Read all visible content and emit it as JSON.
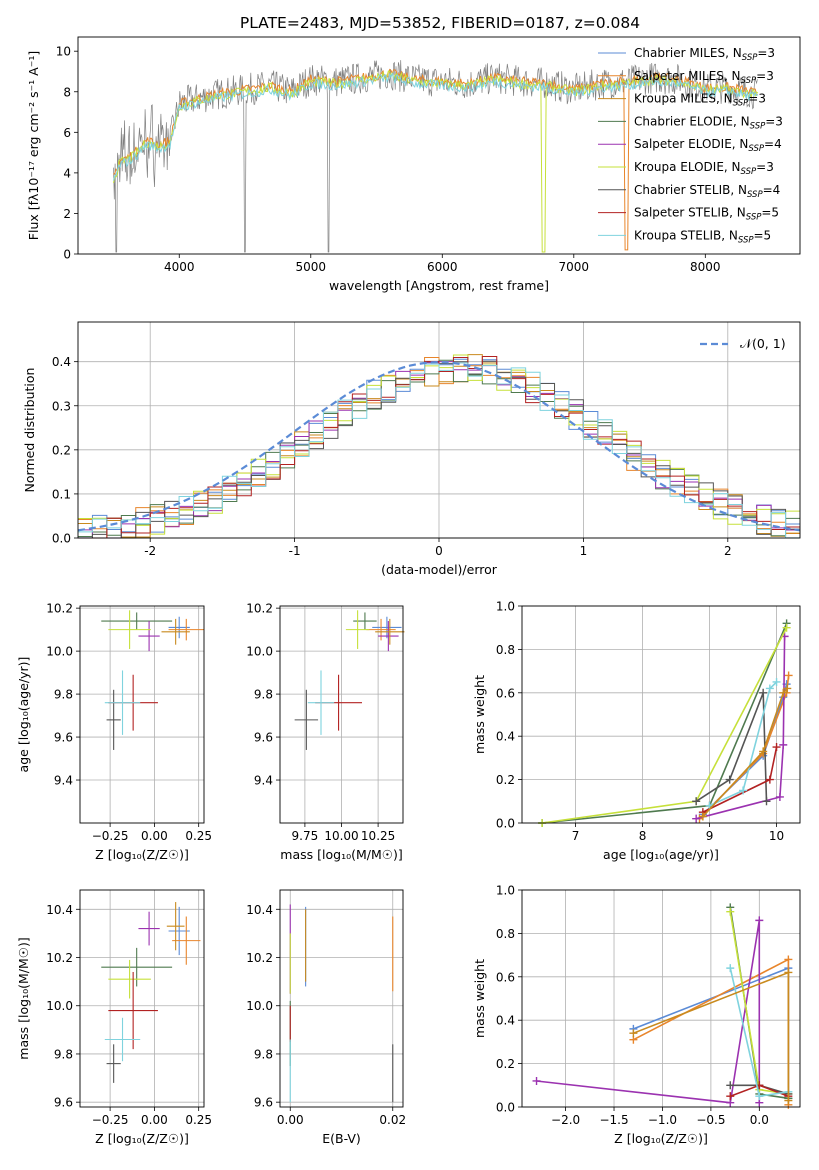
{
  "figure_title": "PLATE=2483, MJD=53852, FIBERID=0187, z=0.084",
  "colors": {
    "Chabrier MILES": "#5b8bd6",
    "Salpeter MILES": "#e8852b",
    "Kroupa MILES": "#c98a1e",
    "Chabrier ELODIE": "#4f7a4f",
    "Salpeter ELODIE": "#9b32b0",
    "Kroupa ELODIE": "#c6e03a",
    "Chabrier STELIB": "#555555",
    "Salpeter STELIB": "#b22222",
    "Kroupa STELIB": "#7fd3de",
    "normal_curve": "#5b8bd6",
    "grid": "#b0b0b0"
  },
  "chart_data": [
    {
      "id": "spectrum",
      "type": "line",
      "title": "PLATE=2483, MJD=53852, FIBERID=0187, z=0.084",
      "xlabel": "wavelength [Angstrom, rest frame]",
      "ylabel": "Flux [fλ10⁻¹⁷ erg cm⁻² s⁻¹ A⁻¹]",
      "xlim": [
        3230,
        8720
      ],
      "ylim": [
        0,
        10.7
      ],
      "xticks": [
        4000,
        5000,
        6000,
        7000,
        8000
      ],
      "yticks": [
        0,
        2,
        4,
        6,
        8,
        10
      ],
      "grid": false,
      "legend_position": "right",
      "legend": [
        {
          "label": "Chabrier MILES, N",
          "sub": "SSP",
          "suffix": "=3"
        },
        {
          "label": "Salpeter MILES, N",
          "sub": "SSP",
          "suffix": "=3"
        },
        {
          "label": "Kroupa MILES, N",
          "sub": "SSP",
          "suffix": "=3"
        },
        {
          "label": "Chabrier ELODIE, N",
          "sub": "SSP",
          "suffix": "=3"
        },
        {
          "label": "Salpeter ELODIE, N",
          "sub": "SSP",
          "suffix": "=4"
        },
        {
          "label": "Kroupa ELODIE, N",
          "sub": "SSP",
          "suffix": "=3"
        },
        {
          "label": "Chabrier STELIB, N",
          "sub": "SSP",
          "suffix": "=4"
        },
        {
          "label": "Salpeter STELIB, N",
          "sub": "SSP",
          "suffix": "=5"
        },
        {
          "label": "Kroupa STELIB, N",
          "sub": "SSP",
          "suffix": "=5"
        }
      ],
      "data_trace": {
        "x": [
          3500,
          3550,
          3650,
          3750,
          3850,
          3930,
          4000,
          4100,
          4300,
          4500,
          4700,
          4850,
          5000,
          5200,
          5400,
          5600,
          5800,
          6000,
          6200,
          6400,
          6600,
          6800,
          7000,
          7200,
          7400,
          7600,
          7800,
          8000,
          8200,
          8400
        ],
        "y": [
          3.8,
          4.6,
          4.9,
          5.6,
          5.4,
          5.6,
          7.4,
          7.6,
          7.9,
          8.1,
          8.3,
          8.0,
          8.6,
          8.5,
          8.7,
          8.9,
          8.6,
          8.5,
          8.4,
          8.7,
          8.5,
          8.4,
          8.1,
          8.4,
          8.5,
          8.7,
          8.6,
          8.2,
          8.2,
          7.9
        ]
      }
    },
    {
      "id": "residuals",
      "type": "histogram",
      "xlabel": "(data-model)/error",
      "ylabel": "Normed distribution",
      "xlim": [
        -2.5,
        2.5
      ],
      "ylim": [
        0,
        0.49
      ],
      "xticks": [
        -2,
        -1,
        0,
        1,
        2
      ],
      "yticks": [
        0.0,
        0.1,
        0.2,
        0.3,
        0.4
      ],
      "grid": true,
      "legend_position": "top-right",
      "legend": [
        {
          "label": "𝒩(0, 1)"
        }
      ],
      "bin_width": 0.1
    },
    {
      "id": "age-vs-Z",
      "type": "errorbar",
      "xlabel": "Z [log₁₀(Z/Z☉)]",
      "ylabel": "age  [log₁₀(age/yr)]",
      "xlim": [
        -0.42,
        0.28
      ],
      "ylim": [
        9.2,
        10.21
      ],
      "xticks": [
        -0.25,
        0.0,
        0.25
      ],
      "xticklabels": [
        "−0.25",
        "0.00",
        "0.25"
      ],
      "yticks": [
        9.4,
        9.6,
        9.8,
        10.0,
        10.2
      ],
      "grid": true
    },
    {
      "id": "age-vs-mass",
      "type": "errorbar",
      "xlabel": "mass [log₁₀(M/M☉)]",
      "ylabel": "",
      "xlim": [
        9.58,
        10.42
      ],
      "ylim": [
        9.2,
        10.21
      ],
      "xticks": [
        9.75,
        10.0,
        10.25
      ],
      "xticklabels": [
        "9.75",
        "10.00",
        "10.25"
      ],
      "yticks": [
        9.4,
        9.6,
        9.8,
        10.0,
        10.2
      ],
      "grid": true
    },
    {
      "id": "massweight-vs-age",
      "type": "line",
      "xlabel": "age  [log₁₀(age/yr)]",
      "ylabel": "mass weight",
      "xlim": [
        6.2,
        10.35
      ],
      "ylim": [
        0,
        1
      ],
      "xticks": [
        7,
        8,
        9,
        10
      ],
      "yticks": [
        0.0,
        0.2,
        0.4,
        0.6,
        0.8,
        1.0
      ],
      "grid": true
    },
    {
      "id": "mass-vs-Z",
      "type": "errorbar",
      "xlabel": "Z [log₁₀(Z/Z☉)]",
      "ylabel": "mass [log₁₀(M/M☉)]",
      "xlim": [
        -0.42,
        0.28
      ],
      "ylim": [
        9.58,
        10.48
      ],
      "xticks": [
        -0.25,
        0.0,
        0.25
      ],
      "xticklabels": [
        "−0.25",
        "0.00",
        "0.25"
      ],
      "yticks": [
        9.6,
        9.8,
        10.0,
        10.2,
        10.4
      ],
      "grid": true
    },
    {
      "id": "mass-vs-EBV",
      "type": "errorbar",
      "xlabel": "E(B-V)",
      "ylabel": "",
      "xlim": [
        -0.002,
        0.022
      ],
      "ylim": [
        9.58,
        10.48
      ],
      "xticks": [
        0.0,
        0.02
      ],
      "xticklabels": [
        "0.00",
        "0.02"
      ],
      "yticks": [
        9.6,
        9.8,
        10.0,
        10.2,
        10.4
      ],
      "grid": true
    },
    {
      "id": "massweight-vs-Z",
      "type": "line",
      "xlabel": "Z [log₁₀(Z/Z☉)]",
      "ylabel": "mass weight",
      "xlim": [
        -2.45,
        0.42
      ],
      "ylim": [
        0,
        1
      ],
      "xticks": [
        -2.0,
        -1.5,
        -1.0,
        -0.5,
        0.0
      ],
      "xticklabels": [
        "−2.0",
        "−1.5",
        "−1.0",
        "−0.5",
        "0.0"
      ],
      "yticks": [
        0.0,
        0.2,
        0.4,
        0.6,
        0.8,
        1.0
      ],
      "grid": true
    }
  ],
  "models": [
    {
      "name": "Chabrier MILES",
      "Z": 0.14,
      "Z_err": 0.06,
      "age": 10.11,
      "age_err": 0.05,
      "mass": 10.31,
      "mass_err": 0.1,
      "mass_z_err": 0.06,
      "ebv": 0.003,
      "ebv_lo": 10.08,
      "ebv_hi": 10.41,
      "sfh_age": [
        8.9,
        9.8,
        10.1,
        10.15
      ],
      "sfh_w": [
        0.04,
        0.31,
        0.58,
        0.64
      ],
      "sfh_Z": [
        -1.3,
        0.3,
        0.3
      ],
      "sfh_Zw": [
        0.36,
        0.64,
        0.04
      ]
    },
    {
      "name": "Salpeter MILES",
      "Z": 0.18,
      "Z_err": 0.1,
      "age": 10.1,
      "age_err": 0.05,
      "mass": 10.27,
      "mass_err": 0.1,
      "mass_z_err": 0.08,
      "ebv": 0.02,
      "ebv_lo": 10.06,
      "ebv_hi": 10.37,
      "sfh_age": [
        8.85,
        9.8,
        10.15,
        10.18
      ],
      "sfh_w": [
        0.02,
        0.32,
        0.6,
        0.68
      ],
      "sfh_Z": [
        -1.3,
        0.3,
        0.3
      ],
      "sfh_Zw": [
        0.31,
        0.68,
        0.01
      ]
    },
    {
      "name": "Chabrier ELODIE",
      "Z": -0.1,
      "Z_err": 0.2,
      "age": 10.14,
      "age_err": 0.04,
      "mass": 10.16,
      "mass_err": 0.08,
      "mass_z_err": 0.2,
      "ebv": 0.0,
      "ebv_lo": 9.75,
      "ebv_hi": 10.02,
      "sfh_age": [
        6.5,
        9.0,
        10.15
      ],
      "sfh_w": [
        0.0,
        0.08,
        0.92
      ],
      "sfh_Z": [
        -0.3,
        0.0,
        0.3
      ],
      "sfh_Zw": [
        0.92,
        0.06,
        0.04
      ]
    },
    {
      "name": "Salpeter ELODIE",
      "Z": -0.03,
      "Z_err": 0.06,
      "age": 10.07,
      "age_err": 0.07,
      "mass": 10.32,
      "mass_err": 0.07,
      "mass_z_err": 0.06,
      "ebv": 0.0,
      "ebv_lo": 10.05,
      "ebv_hi": 10.42,
      "sfh_age": [
        8.8,
        10.05,
        10.1,
        10.12
      ],
      "sfh_w": [
        0.02,
        0.12,
        0.36,
        0.86
      ],
      "sfh_Z": [
        -2.3,
        -0.3,
        0.0,
        0.0
      ],
      "sfh_Zw": [
        0.12,
        0.02,
        0.86,
        0.02
      ]
    },
    {
      "name": "Kroupa ELODIE",
      "Z": -0.14,
      "Z_err": 0.12,
      "age": 10.1,
      "age_err": 0.09,
      "mass": 10.11,
      "mass_err": 0.08,
      "mass_z_err": 0.12,
      "ebv": 0.0,
      "ebv_lo": 10.05,
      "ebv_hi": 10.3,
      "sfh_age": [
        6.5,
        8.8,
        10.15
      ],
      "sfh_w": [
        0.0,
        0.1,
        0.9
      ],
      "sfh_Z": [
        -0.3,
        0.0,
        0.3
      ],
      "sfh_Zw": [
        0.9,
        0.08,
        0.06
      ]
    },
    {
      "name": "Chabrier STELIB",
      "Z": -0.23,
      "Z_err": 0.04,
      "age": 9.68,
      "age_err": 0.14,
      "mass": 9.76,
      "mass_err": 0.08,
      "mass_z_err": 0.04,
      "ebv": 0.02,
      "ebv_lo": 9.6,
      "ebv_hi": 9.84,
      "sfh_age": [
        8.8,
        9.3,
        9.8,
        9.85
      ],
      "sfh_w": [
        0.1,
        0.2,
        0.6,
        0.1
      ],
      "sfh_Z": [
        -0.3,
        0.0,
        0.3
      ],
      "sfh_Zw": [
        0.1,
        0.1,
        0.06
      ]
    },
    {
      "name": "Salpeter STELIB",
      "Z": -0.12,
      "Z_err": 0.14,
      "age": 9.76,
      "age_err": 0.13,
      "mass": 9.98,
      "mass_err": 0.16,
      "mass_z_err": 0.14,
      "ebv": 0.0,
      "ebv_lo": 9.85,
      "ebv_hi": 10.0,
      "sfh_age": [
        8.9,
        9.9,
        10.0
      ],
      "sfh_w": [
        0.05,
        0.2,
        0.35
      ],
      "sfh_Z": [
        -0.3,
        0.0,
        0.3
      ],
      "sfh_Zw": [
        0.05,
        0.1,
        0.05
      ]
    },
    {
      "name": "Kroupa STELIB",
      "Z": -0.18,
      "Z_err": 0.1,
      "age": 9.76,
      "age_err": 0.15,
      "mass": 9.86,
      "mass_err": 0.09,
      "mass_z_err": 0.1,
      "ebv": 0.0,
      "ebv_lo": 9.6,
      "ebv_hi": 9.86,
      "sfh_age": [
        9.0,
        9.5,
        9.9,
        10.0
      ],
      "sfh_w": [
        0.08,
        0.15,
        0.62,
        0.65
      ],
      "sfh_Z": [
        -0.3,
        0.0,
        0.3
      ],
      "sfh_Zw": [
        0.64,
        0.05,
        0.07
      ]
    },
    {
      "name": "Kroupa MILES",
      "Z": 0.12,
      "Z_err": 0.08,
      "age": 10.09,
      "age_err": 0.06,
      "mass": 10.33,
      "mass_err": 0.1,
      "mass_z_err": 0.05,
      "ebv": 0.003,
      "ebv_lo": 10.1,
      "ebv_hi": 10.4,
      "sfh_age": [
        8.9,
        9.8,
        10.1,
        10.16
      ],
      "sfh_w": [
        0.03,
        0.33,
        0.6,
        0.62
      ],
      "sfh_Z": [
        -1.3,
        0.3,
        0.3
      ],
      "sfh_Zw": [
        0.34,
        0.62,
        0.03
      ]
    }
  ]
}
